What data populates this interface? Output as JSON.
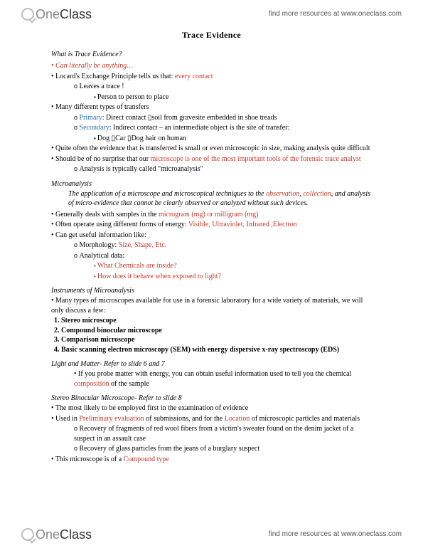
{
  "brand": {
    "one": "One",
    "class": "Class",
    "tagline": "find more resources at www.oneclass.com"
  },
  "title": "Trace Evidence",
  "s1": {
    "h": "What is Trace Evidence?",
    "b1a": "Can literally be anything…",
    "b2a": "Locard's Exchange Principle tells us that: ",
    "b2b": "every contact",
    "b2_1": "Leaves a trace !",
    "b2_1_1": "Person to person to place",
    "b3": "Many different types of transfers",
    "b3_1a": "Primary",
    "b3_1b": ": Direct contact ",
    "arrow": "▯",
    "b3_1c": "soil from gravesite embedded in shoe treads",
    "b3_2a": "Secondary",
    "b3_2b": ": Indirect contact – an intermediate object is the site of transfer:",
    "b3_2_1a": "Dog ",
    "b3_2_1b": "Car ",
    "b3_2_1c": "Dog hair on human",
    "b4": "Quite often the evidence that is transferred is small or even microscopic in size, making analysis quite difficult",
    "b5a": "Should be of no surprise that our ",
    "b5b": "microscope is one of the most important tools of the forensic trace analyst",
    "b5_1": "Analysis is typically called \"microanalysis\""
  },
  "s2": {
    "h": "Microanalysis",
    "def_a": "The application of a microscope and microscopical techniques to the ",
    "def_b": "observation",
    "def_c": ", ",
    "def_d": "collection",
    "def_e": ", and analysis of micro-evidence that cannot be clearly observed or analyzed without such devices.",
    "b1a": "Generally deals with samples in the ",
    "b1b": "microgram (mg) or milligram (mg)",
    "b2a": "Often operate using different forms of energy: ",
    "b2b": "Visible, Ultraviolet, Infrared ,Electron",
    "b3": "Can get useful information like:",
    "b3_1a": "Morphology: ",
    "b3_1b": "Size, Shape, Etc.",
    "b3_2": "Analytical data:",
    "b3_2_1": "What Chemicals are inside?",
    "b3_2_2": "How does it behave when exposed to light?"
  },
  "s3": {
    "h": "Instruments of Microanalysis",
    "b1": "Many types of microscopes available for use in a forensic laboratory for a wide variety of materials, we will only discuss a few:",
    "n1": "Stereo microscope",
    "n2": "Compound binocular microscope",
    "n3": "Comparison microscope",
    "n4": "Basic scanning electron microscopy (SEM) with energy dispersive x-ray spectroscopy (EDS)"
  },
  "s4": {
    "h": "Light and Matter- Refer to slide 6 and 7",
    "b1a": "If you probe matter with energy, you can obtain useful information used to tell you the chemical ",
    "b1b": "composition",
    "b1c": " of the sample"
  },
  "s5": {
    "h": "Stereo Binocular Microscope- Refer to slide 8",
    "b1": "The most likely to be employed first in the examination of evidence",
    "b2a": "Used in ",
    "b2b": "Preliminary evaluation",
    "b2c": " of submissions, and for the ",
    "b2d": "Location",
    "b2e": " of microscopic particles and materials",
    "b2_1": "Recovery of fragments of red wool fibers from a victim's sweater found on the denim jacket of a suspect in an assault case",
    "b2_2": "Recovery of glass particles from the jeans of a burglary suspect",
    "b3a": "This microscope is of a ",
    "b3b": "Compound type"
  }
}
